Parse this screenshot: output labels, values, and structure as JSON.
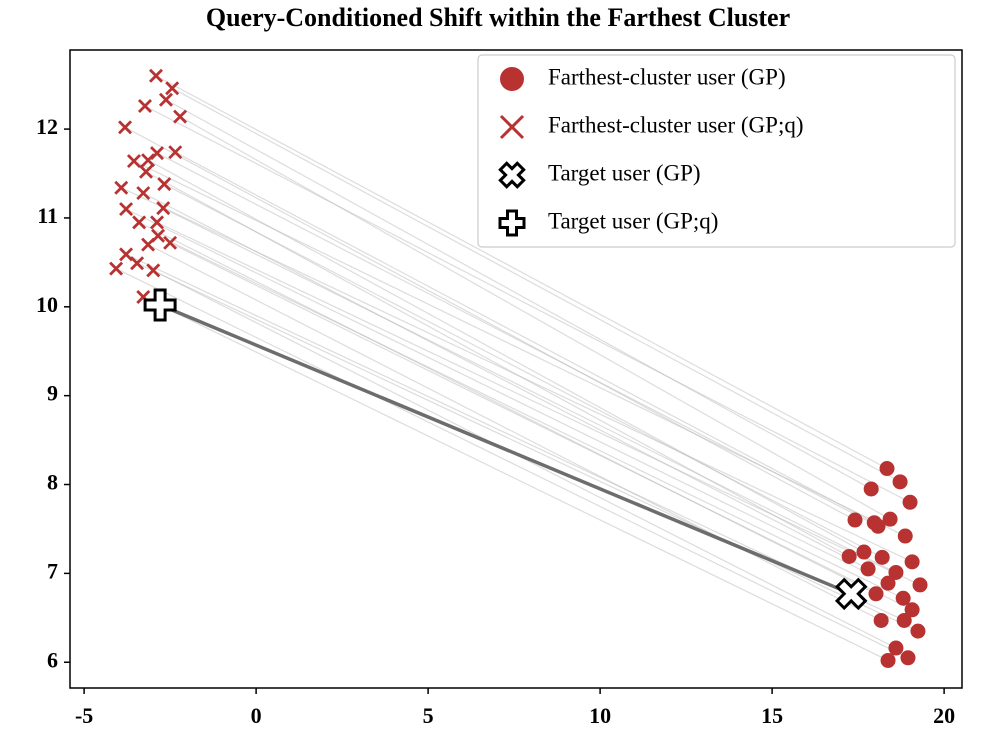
{
  "chart_data": {
    "type": "scatter",
    "title": "Query-Conditioned Shift within the Farthest Cluster",
    "xlim": [
      -5.41,
      20.52
    ],
    "ylim": [
      5.71,
      12.89
    ],
    "xticks": [
      -5,
      0,
      5,
      10,
      15,
      20
    ],
    "yticks": [
      6,
      7,
      8,
      9,
      10,
      11,
      12
    ],
    "legend": "upper right",
    "connect_pairs": true,
    "series": [
      {
        "name": "Farthest-cluster user (GP)",
        "color": "#b83232",
        "marker": "o",
        "x": [
          18.34,
          18.72,
          17.88,
          19.01,
          18.43,
          17.41,
          17.97,
          18.08,
          18.87,
          17.67,
          17.24,
          18.2,
          19.07,
          17.79,
          18.6,
          18.37,
          19.3,
          18.02,
          18.81,
          19.07,
          18.17,
          18.84,
          19.24,
          18.6,
          18.95,
          18.37
        ],
        "values": [
          8.18,
          8.03,
          7.95,
          7.8,
          7.61,
          7.6,
          7.57,
          7.53,
          7.42,
          7.24,
          7.19,
          7.18,
          7.13,
          7.05,
          7.01,
          6.89,
          6.87,
          6.77,
          6.72,
          6.59,
          6.47,
          6.47,
          6.35,
          6.16,
          6.05,
          6.02
        ]
      },
      {
        "name": "Farthest-cluster user (GP;q)",
        "color": "#b83232",
        "marker": "x",
        "x": [
          -2.91,
          -2.44,
          -2.62,
          -3.23,
          -2.21,
          -3.81,
          -2.35,
          -2.88,
          -3.55,
          -3.14,
          -3.2,
          -2.67,
          -3.92,
          -3.28,
          -2.7,
          -3.78,
          -2.88,
          -3.4,
          -2.85,
          -2.5,
          -3.14,
          -3.78,
          -3.46,
          -2.99,
          -4.07,
          -3.28
        ],
        "values": [
          12.6,
          12.46,
          12.33,
          12.26,
          12.14,
          12.02,
          11.74,
          11.73,
          11.64,
          11.65,
          11.52,
          11.38,
          11.34,
          11.28,
          11.11,
          11.1,
          10.95,
          10.95,
          10.8,
          10.72,
          10.7,
          10.59,
          10.49,
          10.41,
          10.43,
          10.11
        ]
      },
      {
        "name": "Target user (GP)",
        "color": "#000000",
        "marker": "X",
        "x": [
          17.3
        ],
        "values": [
          6.77
        ]
      },
      {
        "name": "Target user (GP;q)",
        "color": "#000000",
        "marker": "P",
        "x": [
          -2.79
        ],
        "values": [
          10.02
        ]
      }
    ]
  }
}
